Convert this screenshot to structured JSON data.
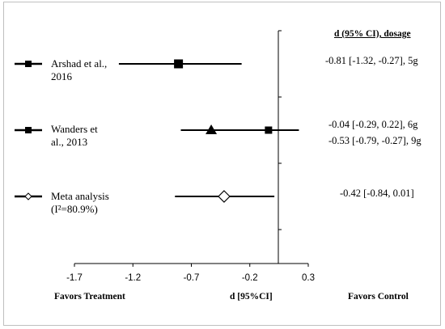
{
  "chart_data": {
    "type": "forest",
    "column_header": "d (95% CI), dosage",
    "xlabel": "d [95%CI]",
    "favors_left": "Favors Treatment",
    "favors_right": "Favors Control",
    "x_ticks": [
      -1.7,
      -1.2,
      -0.7,
      -0.2,
      0.3
    ],
    "x_tick_labels": [
      "-1.7",
      "-1.2",
      "-0.7",
      "-0.2",
      "0.3"
    ],
    "xlim": [
      -1.7,
      0.3
    ],
    "reference_line": 0,
    "studies": [
      {
        "label": "Arshad et al.,\n2016",
        "marker": "square",
        "estimates": [
          {
            "d": -0.81,
            "lower": -1.32,
            "upper": -0.27,
            "dose": "5g",
            "text": "-0.81 [-1.32, -0.27], 5g",
            "marker": "square"
          }
        ]
      },
      {
        "label": "Wanders et\nal., 2013",
        "marker": "square",
        "estimates": [
          {
            "d": -0.04,
            "lower": -0.29,
            "upper": 0.22,
            "dose": "6g",
            "text": "-0.04 [-0.29, 0.22], 6g",
            "marker": "square"
          },
          {
            "d": -0.53,
            "lower": -0.79,
            "upper": -0.27,
            "dose": "9g",
            "text": "-0.53 [-0.79, -0.27], 9g",
            "marker": "triangle"
          }
        ]
      },
      {
        "label": "Meta analysis\n(I²=80.9%)",
        "marker": "diamond-open",
        "estimates": [
          {
            "d": -0.42,
            "lower": -0.84,
            "upper": 0.01,
            "dose": "",
            "text": "-0.42 [-0.84, 0.01]",
            "marker": "diamond-open"
          }
        ]
      }
    ]
  }
}
